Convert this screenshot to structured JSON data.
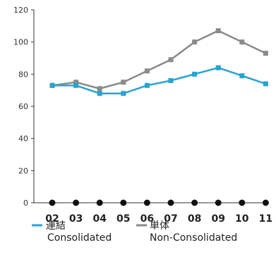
{
  "chart_data": {
    "type": "line",
    "title": "",
    "xlabel": "",
    "ylabel": "",
    "categories": [
      "02",
      "03",
      "04",
      "05",
      "06",
      "07",
      "08",
      "09",
      "10",
      "11"
    ],
    "y_ticks": [
      "0",
      "20",
      "40",
      "60",
      "80",
      "100",
      "120"
    ],
    "ylim": [
      0,
      120
    ],
    "grid": false,
    "legend_position": "bottom",
    "series": [
      {
        "name": "連結",
        "name_en": "Consolidated",
        "color": "#29a3cf",
        "marker": "square",
        "values": [
          73,
          73,
          68,
          68,
          73,
          76,
          80,
          84,
          79,
          74
        ]
      },
      {
        "name": "単体",
        "name_en": "Non-Consolidated",
        "color": "#8a8a8a",
        "marker": "square",
        "values": [
          73,
          75,
          71,
          75,
          82,
          89,
          100,
          107,
          100,
          93
        ]
      }
    ]
  }
}
